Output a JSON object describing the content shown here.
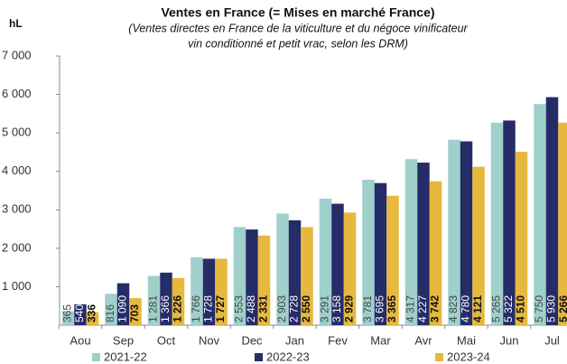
{
  "chart_data": {
    "type": "bar",
    "title": "Ventes en France (= Mises en marché France)",
    "subtitle": [
      "(Ventes directes en France de la viticulture et du négoce vinificateur",
      "vin conditionné et petit vrac, selon les DRM)"
    ],
    "y_label": "hL",
    "categories": [
      "Aou",
      "Sep",
      "Oct",
      "Nov",
      "Dec",
      "Jan",
      "Fev",
      "Mar",
      "Avr",
      "Mai",
      "Jun",
      "Jul"
    ],
    "series": [
      {
        "name": "2021-22",
        "color": "#9fd0cb",
        "values": [
          365,
          816,
          1281,
          1766,
          2553,
          2903,
          3291,
          3781,
          4317,
          4823,
          5265,
          5750
        ],
        "value_labels": [
          "365",
          "816",
          "1 281",
          "1 766",
          "2 553",
          "2 903",
          "3 291",
          "3 781",
          "4 317",
          "4 823",
          "5 265",
          "5 750"
        ]
      },
      {
        "name": "2022-23",
        "color": "#252c68",
        "values": [
          540,
          1090,
          1366,
          1728,
          2488,
          2728,
          3158,
          3695,
          4227,
          4780,
          5322,
          5930
        ],
        "value_labels": [
          "540",
          "1 090",
          "1 366",
          "1 728",
          "2 488",
          "2 728",
          "3 158",
          "3 695",
          "4 227",
          "4 780",
          "5 322",
          "5 930"
        ]
      },
      {
        "name": "2023-24",
        "color": "#e6b83e",
        "values": [
          336,
          703,
          1226,
          1727,
          2331,
          2550,
          2929,
          3365,
          3742,
          4121,
          4510,
          5266
        ],
        "value_labels": [
          "336",
          "703",
          "1 226",
          "1 727",
          "2 331",
          "2 550",
          "2 929",
          "3 365",
          "3 742",
          "4 121",
          "4 510",
          "5 266"
        ]
      }
    ],
    "ylim": [
      0,
      7000
    ],
    "yticks": [
      {
        "value": 1000,
        "label": "1 000"
      },
      {
        "value": 2000,
        "label": "2 000"
      },
      {
        "value": 3000,
        "label": "3 000"
      },
      {
        "value": 4000,
        "label": "4 000"
      },
      {
        "value": 5000,
        "label": "5 000"
      },
      {
        "value": 6000,
        "label": "6 000"
      },
      {
        "value": 7000,
        "label": "7 000"
      }
    ],
    "grid": false
  }
}
